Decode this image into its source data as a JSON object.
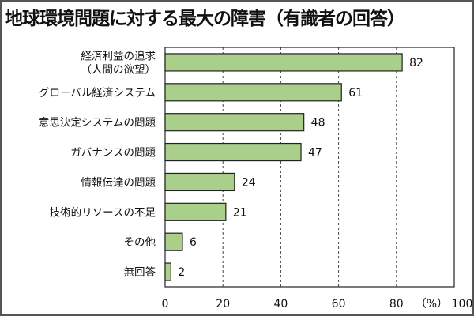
{
  "chart_data": {
    "type": "bar",
    "orientation": "horizontal",
    "title": "地球環境問題に対する最大の障害（有識者の回答）",
    "categories": [
      [
        "経済利益の追求",
        "（人間の欲望）"
      ],
      [
        "グローバル経済システム"
      ],
      [
        "意思決定システムの問題"
      ],
      [
        "ガバナンスの問題"
      ],
      [
        "情報伝達の問題"
      ],
      [
        "技術的リソースの不足"
      ],
      [
        "その他"
      ],
      [
        "無回答"
      ]
    ],
    "values": [
      82,
      61,
      48,
      47,
      24,
      21,
      6,
      2
    ],
    "value_labels": [
      "82",
      "61",
      "48",
      "47",
      "24",
      "21",
      "6",
      "2"
    ],
    "xlim": [
      0,
      100
    ],
    "xticks": [
      "0",
      "20",
      "40",
      "60",
      "80",
      "100"
    ],
    "xunit": "（%）",
    "grid": "vertical dashed",
    "bar_color": "#a9cf8a"
  }
}
